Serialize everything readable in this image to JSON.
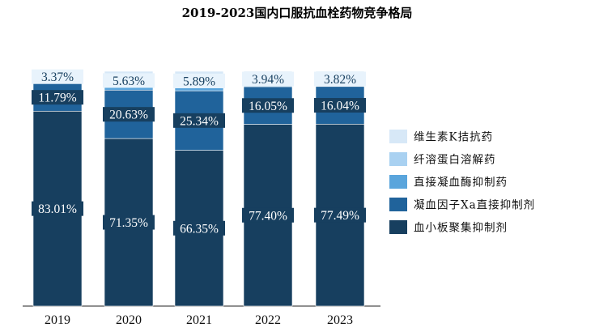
{
  "chart_data": {
    "type": "bar",
    "stacked": true,
    "normalized_percent": true,
    "title": "2019-2023国内口服抗血栓药物竞争格局",
    "xlabel": "",
    "ylabel": "",
    "categories": [
      "2019",
      "2020",
      "2021",
      "2022",
      "2023"
    ],
    "ylim": [
      0,
      100
    ],
    "grid": false,
    "legend_position": "right",
    "series": [
      {
        "name": "血小板聚集抑制剂",
        "color": "#173f5f",
        "values": [
          83.01,
          71.35,
          66.35,
          77.4,
          77.49
        ],
        "labels": [
          "83.01%",
          "71.35%",
          "66.35%",
          "77.40%",
          "77.49%"
        ]
      },
      {
        "name": "凝血因子Xa直接抑制剂",
        "color": "#20639b",
        "values": [
          11.79,
          20.63,
          25.34,
          16.05,
          16.04
        ],
        "labels": [
          "11.79%",
          "20.63%",
          "25.34%",
          "16.05%",
          "16.04%"
        ]
      },
      {
        "name": "直接凝血酶抑制药",
        "color": "#5aa5dc",
        "values": [
          1.2,
          1.26,
          1.27,
          1.26,
          1.26
        ],
        "labels": []
      },
      {
        "name": "纤溶蛋白溶解药",
        "color": "#a9d1f1",
        "values": [
          3.37,
          5.63,
          5.89,
          3.94,
          3.82
        ],
        "labels": [
          "3.37%",
          "5.63%",
          "5.89%",
          "3.94%",
          "3.82%"
        ]
      },
      {
        "name": "维生素K拮抗药",
        "color": "#d7e8f7",
        "values": [
          0.63,
          1.13,
          1.15,
          1.35,
          1.39
        ],
        "labels": []
      }
    ],
    "legend_order": [
      "维生素K拮抗药",
      "纤溶蛋白溶解药",
      "直接凝血酶抑制药",
      "凝血因子Xa直接抑制剂",
      "血小板聚集抑制剂"
    ]
  }
}
